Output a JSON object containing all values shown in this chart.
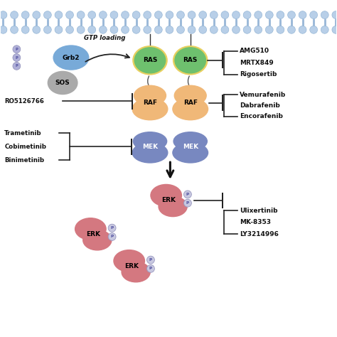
{
  "background_color": "#ffffff",
  "membrane_circle_color": "#b8cfe8",
  "membrane_tail_color": "#9ab8d8",
  "ras_fill": "#6ec06e",
  "ras_outline": "#e8d060",
  "raf_fill": "#f0b878",
  "mek_fill": "#7888c0",
  "erk_fill": "#d47880",
  "grb2_fill": "#78aad8",
  "sos_fill": "#aaaaaa",
  "p_circle_fill": "#c8c8e0",
  "p_circle_edge": "#9898c0",
  "inhibit_color": "#222222",
  "text_color": "#111111",
  "gtp_text": "GTP loading",
  "right_drugs_ras": [
    "AMG510",
    "MRTX849",
    "Rigosertib"
  ],
  "right_drugs_raf": [
    "Vemurafenib",
    "Dabrafenib",
    "Encorafenib"
  ],
  "left_drugs_mek": [
    "Trametinib",
    "Cobimetinib",
    "Binimetinib"
  ],
  "right_drugs_erk": [
    "Ulixertinib",
    "MK-8353",
    "LY3214996"
  ],
  "left_drug_ro": "RO5126766"
}
